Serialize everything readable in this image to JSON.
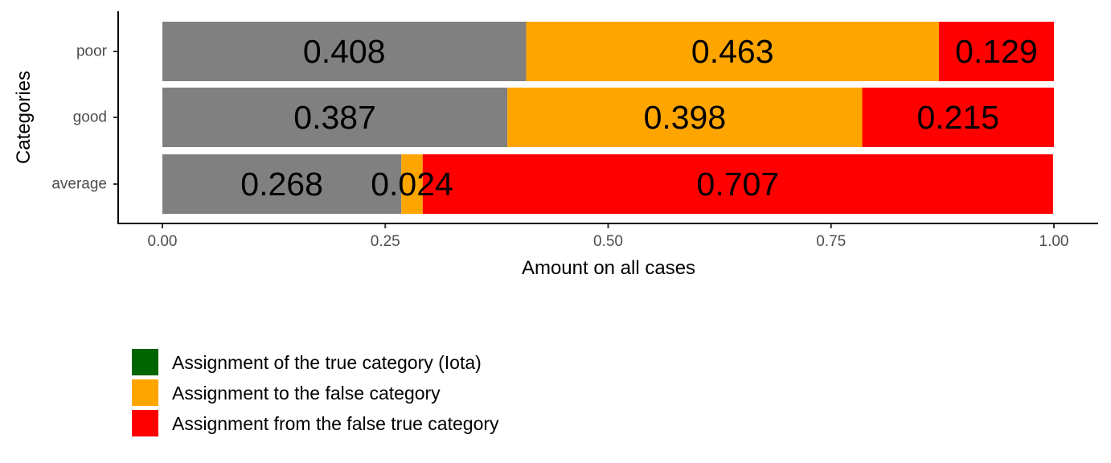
{
  "chart_data": {
    "type": "bar",
    "orientation": "horizontal",
    "stacked": true,
    "categories": [
      "average",
      "good",
      "poor"
    ],
    "series": [
      {
        "name": "Assignment of the true category (Iota)",
        "color": "#808080",
        "values": [
          0.268,
          0.387,
          0.408
        ],
        "labels": [
          "0.268",
          "0.387",
          "0.408"
        ]
      },
      {
        "name": "Assignment to the false category",
        "color": "#FFA500",
        "values": [
          0.024,
          0.398,
          0.463
        ],
        "labels": [
          "0.024",
          "0.398",
          "0.463"
        ]
      },
      {
        "name": "Assignment from the false true category",
        "color": "#FF0000",
        "values": [
          0.707,
          0.215,
          0.129
        ],
        "labels": [
          "0.707",
          "0.215",
          "0.129"
        ]
      }
    ],
    "xlabel": "Amount on all cases",
    "ylabel": "Categories",
    "xlim": [
      0,
      1
    ],
    "xticks": [
      0,
      0.25,
      0.5,
      0.75,
      1.0
    ],
    "xtick_labels": [
      "0.00",
      "0.25",
      "0.50",
      "0.75",
      "1.00"
    ],
    "grid": false,
    "legend": {
      "position": "bottom-left",
      "entries": [
        {
          "label": "Assignment of the true category (Iota)",
          "color": "#006400"
        },
        {
          "label": "Assignment to the false category",
          "color": "#FFA500"
        },
        {
          "label": "Assignment from the false true category",
          "color": "#FF0000"
        }
      ]
    }
  }
}
